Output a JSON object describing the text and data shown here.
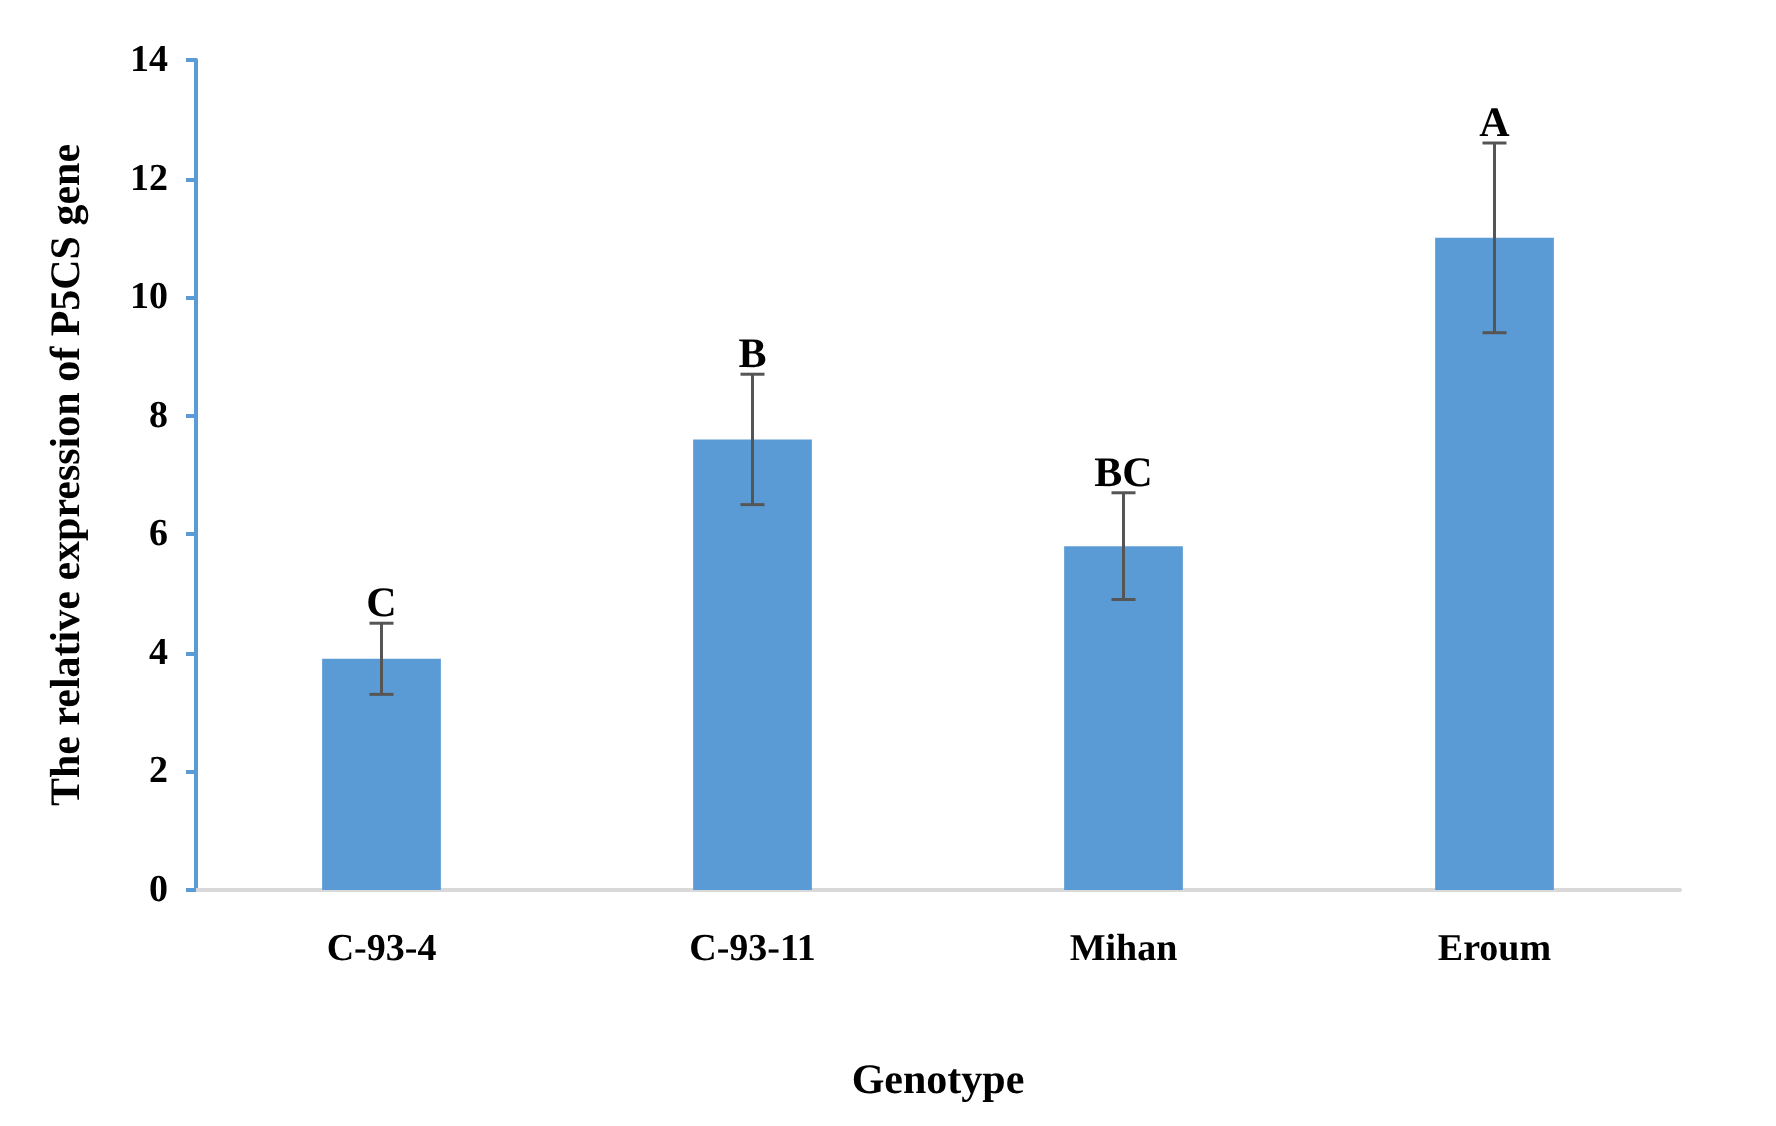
{
  "chart_data": {
    "type": "bar",
    "xlabel": "Genotype",
    "ylabel": "The relative expression of P5CS gene",
    "categories": [
      "C-93-4",
      "C-93-11",
      "Mihan",
      "Eroum"
    ],
    "values": [
      3.9,
      7.6,
      5.8,
      11.0
    ],
    "errors": [
      0.6,
      1.1,
      0.9,
      1.6
    ],
    "color": "#5b9bd5",
    "ylim": [
      0,
      14
    ],
    "yticks": [
      0,
      2,
      4,
      6,
      8,
      10,
      12,
      14
    ],
    "grid": false,
    "annotations": [
      {
        "text": "C",
        "x": "C-93-4",
        "y": 4.5
      },
      {
        "text": "B",
        "x": "C-93-11",
        "y": 8.7
      },
      {
        "text": "BC",
        "x": "Mihan",
        "y": 6.7
      },
      {
        "text": "A",
        "x": "Eroum",
        "y": 12.6
      }
    ]
  }
}
